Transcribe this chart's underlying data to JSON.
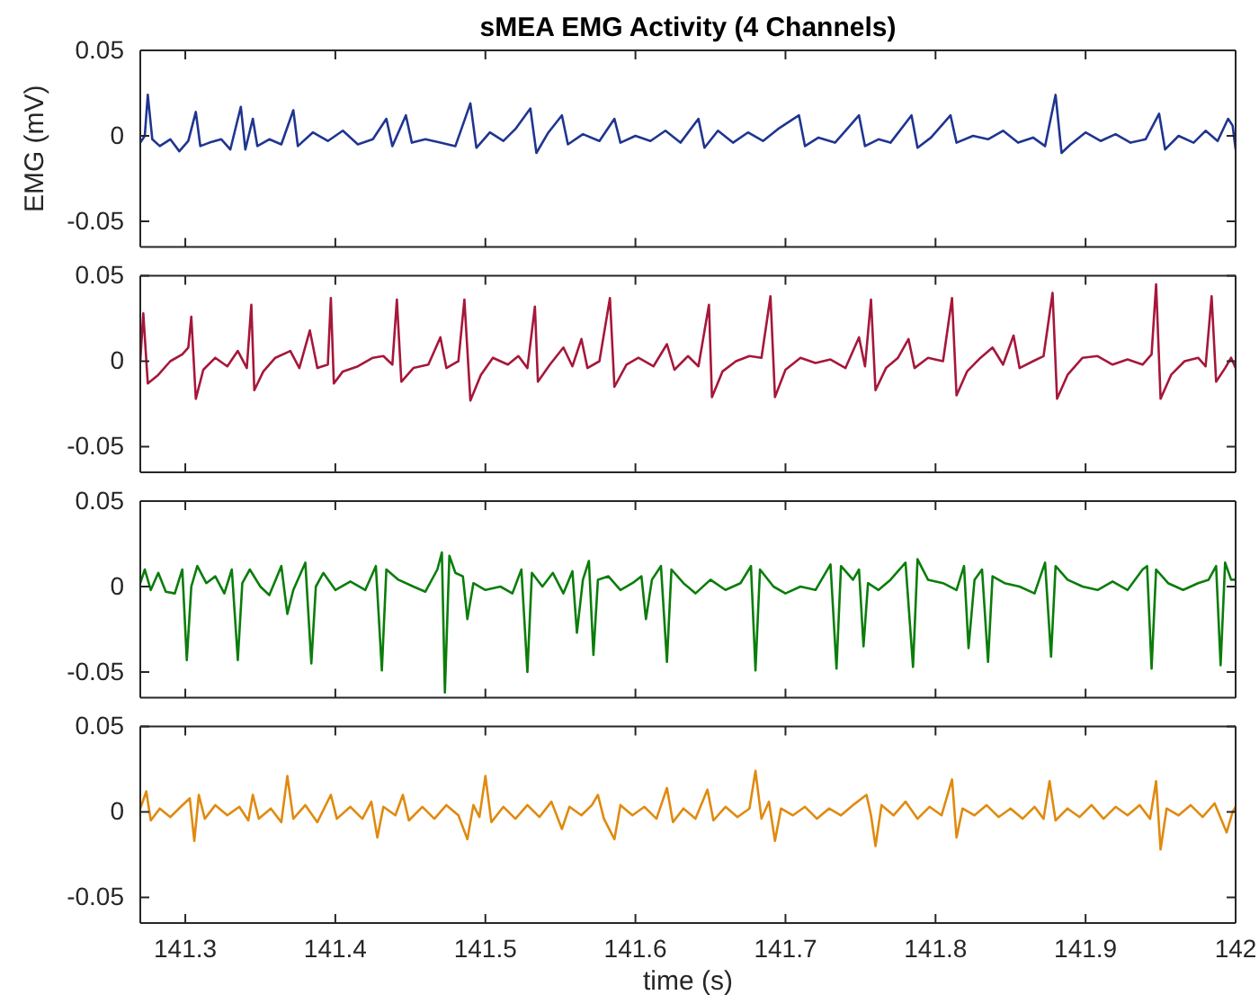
{
  "chart_data": [
    {
      "type": "line",
      "title": "sMEA EMG Activity (4 Channels)",
      "ylabel": "EMG (mV)",
      "xlim": [
        141.27,
        142
      ],
      "xticks": [
        141.3,
        141.4,
        141.5,
        141.6,
        141.7,
        141.8,
        141.9,
        142
      ],
      "ylim": [
        -0.065,
        0.05
      ],
      "yticks": [
        -0.05,
        0,
        0.05
      ],
      "tick_labels": "y",
      "x": [
        141.27,
        141.273,
        141.275,
        141.278,
        141.283,
        141.29,
        141.296,
        141.302,
        141.307,
        141.31,
        141.316,
        141.324,
        141.33,
        141.337,
        141.34,
        141.345,
        141.348,
        141.356,
        141.364,
        141.372,
        141.375,
        141.385,
        141.395,
        141.405,
        141.415,
        141.425,
        141.434,
        141.438,
        141.447,
        141.451,
        141.46,
        141.47,
        141.48,
        141.49,
        141.494,
        141.503,
        141.512,
        141.52,
        141.53,
        141.534,
        141.542,
        141.551,
        141.555,
        141.565,
        141.576,
        141.586,
        141.59,
        141.6,
        141.61,
        141.62,
        141.63,
        141.642,
        141.646,
        141.655,
        141.665,
        141.675,
        141.685,
        141.695,
        141.709,
        141.713,
        141.722,
        141.733,
        141.74,
        141.749,
        141.753,
        141.762,
        141.77,
        141.784,
        141.788,
        141.797,
        141.81,
        141.814,
        141.825,
        141.835,
        141.845,
        141.855,
        141.865,
        141.873,
        141.88,
        141.884,
        141.89,
        141.9,
        141.91,
        141.92,
        141.93,
        141.94,
        141.949,
        141.953,
        141.962,
        141.972,
        141.98,
        141.988,
        141.995,
        141.998,
        142.0
      ],
      "series": [
        {
          "color": "#1f3590",
          "values": [
            -0.004,
            0.0,
            0.024,
            -0.002,
            -0.006,
            -0.002,
            -0.009,
            -0.003,
            0.014,
            -0.006,
            -0.004,
            -0.002,
            -0.008,
            0.017,
            -0.008,
            0.01,
            -0.006,
            -0.002,
            -0.005,
            0.015,
            -0.006,
            0.002,
            -0.003,
            0.003,
            -0.005,
            -0.002,
            0.01,
            -0.006,
            0.012,
            -0.004,
            -0.002,
            -0.004,
            -0.006,
            0.019,
            -0.007,
            0.002,
            -0.003,
            0.004,
            0.016,
            -0.01,
            0.002,
            0.012,
            -0.005,
            0.001,
            -0.003,
            0.01,
            -0.004,
            0.0,
            -0.003,
            0.003,
            -0.004,
            0.01,
            -0.007,
            0.003,
            -0.004,
            0.002,
            -0.003,
            0.004,
            0.012,
            -0.006,
            -0.001,
            -0.004,
            0.003,
            0.012,
            -0.006,
            -0.002,
            -0.004,
            0.012,
            -0.007,
            -0.001,
            0.012,
            -0.004,
            0.0,
            -0.002,
            0.003,
            -0.004,
            -0.001,
            -0.006,
            0.024,
            -0.01,
            -0.005,
            0.002,
            -0.003,
            0.001,
            -0.004,
            -0.002,
            0.013,
            -0.008,
            0.0,
            -0.004,
            0.003,
            -0.003,
            0.01,
            0.006,
            -0.008
          ]
        }
      ]
    },
    {
      "type": "line",
      "xlim": [
        141.27,
        142
      ],
      "xticks": [
        141.3,
        141.4,
        141.5,
        141.6,
        141.7,
        141.8,
        141.9,
        142
      ],
      "ylim": [
        -0.065,
        0.05
      ],
      "yticks": [
        -0.05,
        0,
        0.05
      ],
      "tick_labels": "y",
      "x": [
        141.27,
        141.272,
        141.275,
        141.282,
        141.29,
        141.298,
        141.302,
        141.304,
        141.307,
        141.312,
        141.32,
        141.328,
        141.335,
        141.341,
        141.344,
        141.346,
        141.352,
        141.36,
        141.37,
        141.376,
        141.383,
        141.388,
        141.395,
        141.397,
        141.399,
        141.405,
        141.415,
        141.425,
        141.432,
        141.438,
        141.441,
        141.444,
        141.452,
        141.462,
        141.47,
        141.474,
        141.482,
        141.486,
        141.49,
        141.497,
        141.505,
        141.515,
        141.522,
        141.528,
        141.533,
        141.535,
        141.543,
        141.552,
        141.558,
        141.564,
        141.568,
        141.576,
        141.583,
        141.586,
        141.594,
        141.602,
        141.612,
        141.621,
        141.626,
        141.635,
        141.642,
        141.649,
        141.651,
        141.658,
        141.667,
        141.676,
        141.684,
        141.69,
        141.693,
        141.7,
        141.71,
        141.72,
        141.73,
        141.74,
        141.749,
        141.753,
        141.757,
        141.76,
        141.767,
        141.775,
        141.782,
        141.786,
        141.795,
        141.805,
        141.811,
        141.814,
        141.821,
        141.83,
        141.838,
        141.845,
        141.852,
        141.856,
        141.865,
        141.872,
        141.878,
        141.881,
        141.888,
        141.898,
        141.908,
        141.918,
        141.928,
        141.938,
        141.944,
        141.947,
        141.95,
        141.957,
        141.966,
        141.975,
        141.98,
        141.984,
        141.987,
        141.993,
        141.997,
        142.0
      ],
      "series": [
        {
          "color": "#a6173a",
          "values": [
            0.0,
            0.028,
            -0.013,
            -0.008,
            0.0,
            0.004,
            0.008,
            0.026,
            -0.022,
            -0.005,
            0.002,
            -0.003,
            0.006,
            -0.004,
            0.033,
            -0.017,
            -0.006,
            0.002,
            0.006,
            -0.004,
            0.018,
            -0.004,
            -0.002,
            0.037,
            -0.013,
            -0.006,
            -0.003,
            0.002,
            0.003,
            -0.002,
            0.036,
            -0.012,
            -0.004,
            -0.002,
            0.014,
            -0.004,
            0.0,
            0.036,
            -0.023,
            -0.008,
            0.002,
            -0.002,
            0.003,
            -0.004,
            0.032,
            -0.012,
            -0.002,
            0.008,
            -0.003,
            0.013,
            -0.004,
            0.0,
            0.037,
            -0.015,
            -0.002,
            0.002,
            -0.003,
            0.01,
            -0.005,
            0.003,
            -0.003,
            0.033,
            -0.021,
            -0.006,
            0.0,
            0.003,
            0.002,
            0.038,
            -0.021,
            -0.005,
            0.002,
            -0.001,
            0.001,
            -0.004,
            0.014,
            -0.003,
            0.036,
            -0.017,
            -0.004,
            0.002,
            0.013,
            -0.004,
            0.002,
            0.0,
            0.037,
            -0.02,
            -0.006,
            0.002,
            0.008,
            -0.002,
            0.015,
            -0.004,
            0.0,
            0.003,
            0.04,
            -0.022,
            -0.008,
            0.002,
            0.003,
            -0.002,
            0.001,
            -0.002,
            0.004,
            0.045,
            -0.022,
            -0.008,
            0.0,
            0.002,
            -0.003,
            0.038,
            -0.012,
            -0.004,
            0.002,
            -0.004
          ]
        }
      ]
    },
    {
      "type": "line",
      "xlim": [
        141.27,
        142
      ],
      "xticks": [
        141.3,
        141.4,
        141.5,
        141.6,
        141.7,
        141.8,
        141.9,
        142
      ],
      "ylim": [
        -0.065,
        0.05
      ],
      "yticks": [
        -0.05,
        0,
        0.05
      ],
      "tick_labels": "y",
      "x": [
        141.27,
        141.273,
        141.277,
        141.282,
        141.287,
        141.293,
        141.298,
        141.301,
        141.304,
        141.308,
        141.314,
        141.32,
        141.326,
        141.331,
        141.335,
        141.338,
        141.343,
        141.35,
        141.356,
        141.364,
        141.368,
        141.372,
        141.38,
        141.384,
        141.387,
        141.392,
        141.4,
        141.41,
        141.42,
        141.427,
        141.431,
        141.434,
        141.442,
        141.452,
        141.46,
        141.468,
        141.471,
        141.473,
        141.476,
        141.48,
        141.485,
        141.488,
        141.492,
        141.5,
        141.51,
        141.518,
        141.524,
        141.528,
        141.531,
        141.538,
        141.545,
        141.552,
        141.558,
        141.561,
        141.565,
        141.569,
        141.572,
        141.575,
        141.582,
        141.59,
        141.598,
        141.604,
        141.607,
        141.611,
        141.617,
        141.621,
        141.624,
        141.632,
        141.64,
        141.65,
        141.66,
        141.67,
        141.677,
        141.68,
        141.683,
        141.692,
        141.7,
        141.71,
        141.72,
        141.73,
        141.734,
        141.737,
        141.745,
        141.749,
        141.752,
        141.755,
        141.762,
        141.77,
        141.78,
        141.785,
        141.788,
        141.795,
        141.805,
        141.814,
        141.819,
        141.822,
        141.826,
        141.831,
        141.835,
        141.838,
        141.846,
        141.856,
        141.866,
        141.873,
        141.877,
        141.88,
        141.888,
        141.898,
        141.908,
        141.918,
        141.928,
        141.938,
        141.941,
        141.944,
        141.947,
        141.955,
        141.965,
        141.975,
        141.982,
        141.987,
        141.99,
        141.993,
        141.997,
        142.0
      ],
      "series": [
        {
          "color": "#0a7d0a",
          "values": [
            0.002,
            0.01,
            -0.002,
            0.008,
            -0.003,
            -0.004,
            0.01,
            -0.043,
            0.0,
            0.012,
            0.002,
            0.006,
            -0.004,
            0.01,
            -0.043,
            0.002,
            0.01,
            0.0,
            -0.005,
            0.012,
            -0.016,
            -0.002,
            0.014,
            -0.045,
            0.0,
            0.008,
            -0.002,
            0.003,
            -0.002,
            0.012,
            -0.049,
            0.01,
            0.004,
            0.0,
            -0.003,
            0.01,
            0.02,
            -0.062,
            0.018,
            0.008,
            0.006,
            -0.019,
            0.002,
            -0.002,
            0.0,
            -0.004,
            0.01,
            -0.05,
            0.008,
            0.0,
            0.008,
            -0.004,
            0.009,
            -0.027,
            0.004,
            0.015,
            -0.04,
            0.004,
            0.006,
            -0.002,
            0.002,
            0.006,
            -0.019,
            0.004,
            0.012,
            -0.044,
            0.01,
            0.002,
            -0.004,
            0.004,
            -0.002,
            0.002,
            0.012,
            -0.049,
            0.01,
            0.0,
            -0.004,
            0.0,
            -0.002,
            0.013,
            -0.048,
            0.012,
            0.004,
            0.01,
            -0.035,
            0.002,
            -0.002,
            0.004,
            0.014,
            -0.047,
            0.016,
            0.004,
            0.002,
            -0.002,
            0.012,
            -0.036,
            0.004,
            0.01,
            -0.044,
            0.006,
            0.002,
            0.0,
            -0.004,
            0.014,
            -0.041,
            0.012,
            0.004,
            0.0,
            -0.002,
            0.003,
            -0.002,
            0.01,
            0.012,
            -0.048,
            0.01,
            0.002,
            -0.002,
            0.002,
            0.004,
            0.012,
            -0.046,
            0.014,
            0.004,
            0.004
          ]
        }
      ]
    },
    {
      "type": "line",
      "xlabel": "time (s)",
      "xlim": [
        141.27,
        142
      ],
      "xticks": [
        141.3,
        141.4,
        141.5,
        141.6,
        141.7,
        141.8,
        141.9,
        142
      ],
      "ylim": [
        -0.065,
        0.05
      ],
      "yticks": [
        -0.05,
        0,
        0.05
      ],
      "x": [
        141.27,
        141.274,
        141.277,
        141.283,
        141.29,
        141.297,
        141.303,
        141.306,
        141.309,
        141.313,
        141.32,
        141.328,
        141.336,
        141.342,
        141.345,
        141.349,
        141.357,
        141.364,
        141.368,
        141.372,
        141.38,
        141.388,
        141.397,
        141.401,
        141.41,
        141.418,
        141.424,
        141.428,
        141.432,
        141.44,
        141.445,
        141.449,
        141.458,
        141.466,
        141.474,
        141.482,
        141.488,
        141.492,
        141.496,
        141.5,
        141.504,
        141.512,
        141.52,
        141.528,
        141.536,
        141.544,
        141.551,
        141.556,
        141.564,
        141.571,
        141.575,
        141.579,
        141.586,
        141.59,
        141.598,
        141.606,
        141.614,
        141.621,
        141.625,
        141.632,
        141.64,
        141.648,
        141.652,
        141.66,
        141.668,
        141.676,
        141.68,
        141.684,
        141.689,
        141.693,
        141.697,
        141.705,
        141.713,
        141.721,
        141.729,
        141.737,
        141.745,
        141.754,
        141.757,
        141.76,
        141.764,
        141.772,
        141.78,
        141.788,
        141.796,
        141.804,
        141.811,
        141.814,
        141.818,
        141.826,
        141.834,
        141.842,
        141.85,
        141.858,
        141.866,
        141.872,
        141.876,
        141.88,
        141.888,
        141.896,
        141.904,
        141.912,
        141.92,
        141.928,
        141.936,
        141.943,
        141.947,
        141.95,
        141.954,
        141.962,
        141.97,
        141.978,
        141.986,
        141.994,
        141.998,
        142.0
      ],
      "series": [
        {
          "color": "#e08a0f",
          "values": [
            0.002,
            0.012,
            -0.005,
            0.002,
            -0.003,
            0.003,
            0.008,
            -0.017,
            0.01,
            -0.004,
            0.004,
            -0.002,
            0.003,
            -0.005,
            0.01,
            -0.004,
            0.002,
            -0.006,
            0.021,
            -0.004,
            0.004,
            -0.006,
            0.01,
            -0.004,
            0.003,
            -0.004,
            0.006,
            -0.015,
            0.003,
            -0.002,
            0.01,
            -0.005,
            0.003,
            -0.004,
            0.004,
            -0.002,
            -0.016,
            0.004,
            -0.003,
            0.021,
            -0.006,
            0.003,
            -0.004,
            0.004,
            -0.003,
            0.006,
            -0.01,
            0.003,
            -0.002,
            0.004,
            0.01,
            -0.004,
            -0.016,
            0.004,
            -0.002,
            0.003,
            -0.004,
            0.014,
            -0.006,
            0.002,
            -0.004,
            0.013,
            -0.005,
            0.003,
            -0.003,
            0.002,
            0.024,
            -0.004,
            0.006,
            -0.017,
            0.002,
            -0.002,
            0.003,
            -0.004,
            0.002,
            -0.002,
            0.004,
            0.01,
            -0.002,
            -0.02,
            0.004,
            -0.002,
            0.006,
            -0.004,
            0.003,
            -0.002,
            0.019,
            -0.015,
            0.002,
            -0.002,
            0.004,
            -0.003,
            0.002,
            -0.004,
            0.003,
            -0.004,
            0.018,
            -0.005,
            0.002,
            -0.003,
            0.004,
            -0.004,
            0.003,
            -0.002,
            0.004,
            -0.004,
            0.018,
            -0.022,
            0.002,
            -0.002,
            0.004,
            -0.003,
            0.005,
            -0.012,
            0.0,
            0.003
          ]
        }
      ]
    }
  ]
}
